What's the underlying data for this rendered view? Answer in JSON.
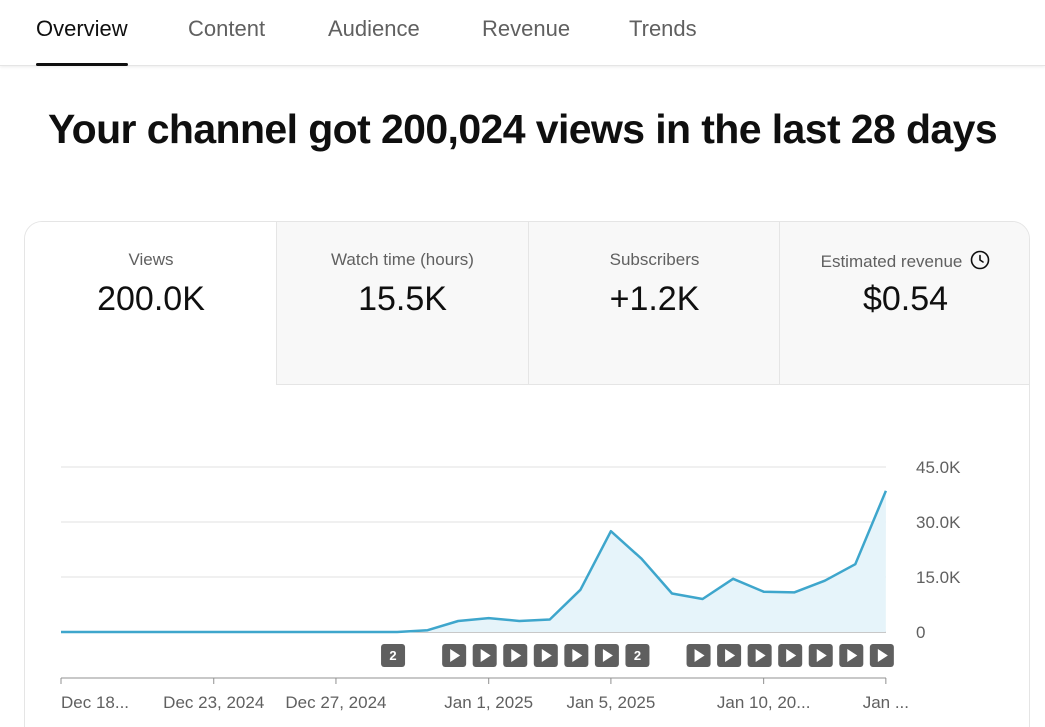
{
  "tabs": [
    {
      "label": "Overview",
      "active": true
    },
    {
      "label": "Content",
      "active": false
    },
    {
      "label": "Audience",
      "active": false
    },
    {
      "label": "Revenue",
      "active": false
    },
    {
      "label": "Trends",
      "active": false
    }
  ],
  "headline": "Your channel got 200,024 views in the last 28 days",
  "metrics": [
    {
      "label": "Views",
      "value": "200.0K",
      "active": true
    },
    {
      "label": "Watch time (hours)",
      "value": "15.5K",
      "active": false
    },
    {
      "label": "Subscribers",
      "value": "+1.2K",
      "active": false
    },
    {
      "label": "Estimated revenue",
      "value": "$0.54",
      "active": false,
      "icon": "clock-icon"
    }
  ],
  "chart_data": {
    "type": "area",
    "series": [
      {
        "values": [
          0,
          0,
          0,
          0,
          0,
          0,
          0,
          0,
          0,
          0,
          0,
          0,
          500,
          3000,
          3800,
          3000,
          3400,
          11500,
          27500,
          20000,
          10500,
          9000,
          14500,
          11000,
          10800,
          14000,
          18500,
          38500
        ]
      }
    ],
    "ylim": [
      0,
      45000
    ],
    "y_ticks": [
      "45.0K",
      "30.0K",
      "15.0K",
      "0"
    ],
    "x_tick_labels": [
      "Dec 18...",
      "Dec 23, 2024",
      "Dec 27, 2024",
      "Jan 1, 2025",
      "Jan 5, 2025",
      "Jan 10, 20...",
      "Jan ..."
    ],
    "x_tick_days": [
      0,
      5,
      9,
      14,
      18,
      23,
      27
    ],
    "line_color": "#3ea6cc",
    "fill_color": "#e6f4fa",
    "grid": true,
    "markers": [
      {
        "day": 11,
        "type": "count",
        "label": "2"
      },
      {
        "day": 13,
        "type": "play"
      },
      {
        "day": 14,
        "type": "play"
      },
      {
        "day": 15,
        "type": "play"
      },
      {
        "day": 16,
        "type": "play"
      },
      {
        "day": 17,
        "type": "play"
      },
      {
        "day": 18,
        "type": "play"
      },
      {
        "day": 19,
        "type": "count",
        "label": "2"
      },
      {
        "day": 21,
        "type": "play"
      },
      {
        "day": 22,
        "type": "play"
      },
      {
        "day": 23,
        "type": "play"
      },
      {
        "day": 24,
        "type": "play"
      },
      {
        "day": 25,
        "type": "play"
      },
      {
        "day": 26,
        "type": "play"
      },
      {
        "day": 27,
        "type": "play"
      }
    ]
  }
}
